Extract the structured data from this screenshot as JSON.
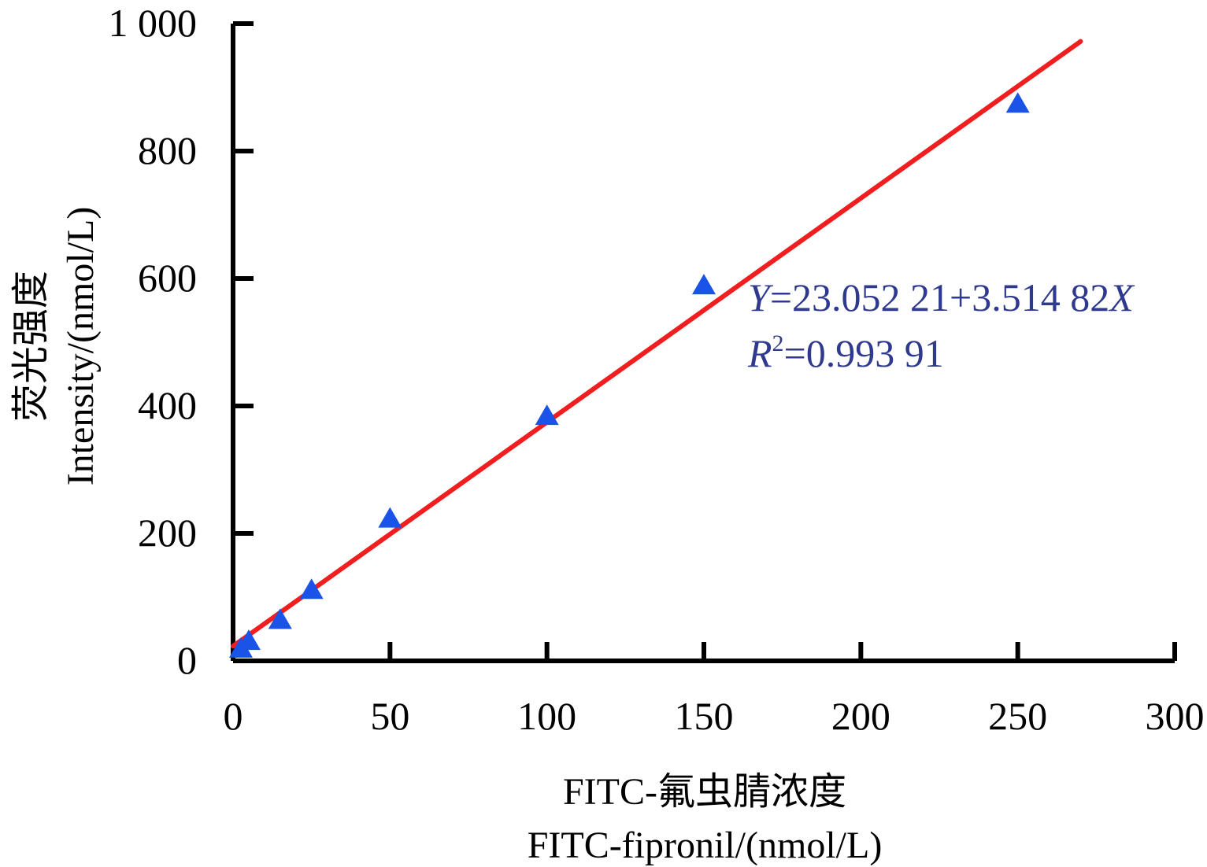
{
  "chart_data": {
    "type": "scatter",
    "xlabel_cn": "FITC-氟虫腈浓度",
    "xlabel": "FITC-fipronil/(nmol/L)",
    "ylabel_cn": "荧光强度",
    "ylabel": "Intensity/(nmol/L)",
    "xlim": [
      0,
      300
    ],
    "ylim": [
      0,
      1000
    ],
    "x_ticks": [
      "0",
      "50",
      "100",
      "150",
      "200",
      "250",
      "300"
    ],
    "y_ticks": [
      "0",
      "200",
      "400",
      "600",
      "800",
      "1 000"
    ],
    "x_tick_values": [
      0,
      50,
      100,
      150,
      200,
      250,
      300
    ],
    "y_tick_values": [
      0,
      200,
      400,
      600,
      800,
      1000
    ],
    "grid": false,
    "series": [
      {
        "marker": "triangle",
        "color": "#1a53e8",
        "points": [
          {
            "x": 2.5,
            "y": 18
          },
          {
            "x": 5,
            "y": 30
          },
          {
            "x": 15,
            "y": 63
          },
          {
            "x": 25,
            "y": 110
          },
          {
            "x": 50,
            "y": 222
          },
          {
            "x": 100,
            "y": 383
          },
          {
            "x": 150,
            "y": 588
          },
          {
            "x": 250,
            "y": 873
          }
        ]
      }
    ],
    "fit": {
      "color": "#f01e1e",
      "intercept": 23.05221,
      "slope": 3.51482,
      "x_range": [
        0,
        270
      ],
      "eq_y_symbol": "Y",
      "eq_body": "=23.052 21+3.514 82",
      "eq_x_symbol": "X",
      "r_symbol": "R",
      "r_sup": "2",
      "r_body": "=0.993 91"
    }
  }
}
